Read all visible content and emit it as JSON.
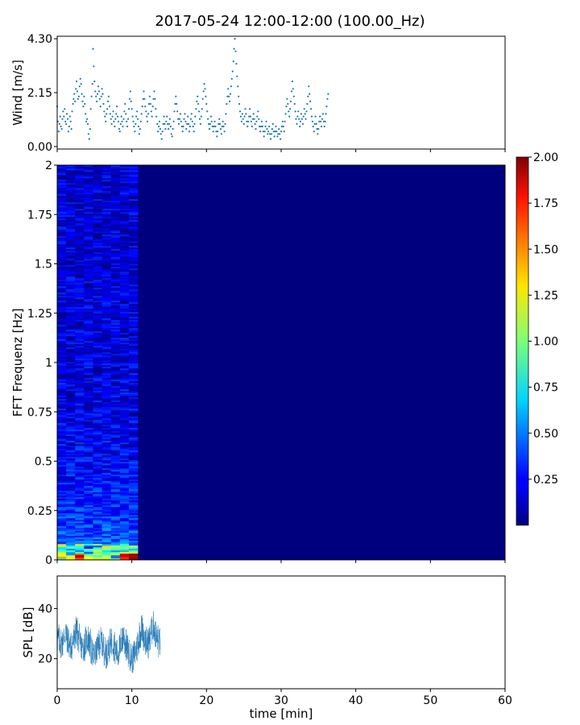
{
  "title": "2017-05-24 12:00-12:00 (100.00_Hz)",
  "chart_data": [
    {
      "id": "wind",
      "type": "scatter",
      "ylabel": "Wind [m/s]",
      "xlim": [
        0,
        60
      ],
      "ylim": [
        -0.1,
        4.4
      ],
      "yticks": [
        0.0,
        2.15,
        4.3
      ],
      "ytick_labels": [
        "0.00",
        "2.15",
        "4.30"
      ],
      "marker_color": "#1f77b4",
      "sample_step_min": 0.1,
      "x_start": 0.0,
      "values": [
        1.6,
        1.0,
        0.6,
        0.9,
        1.2,
        0.8,
        0.7,
        1.1,
        1.4,
        1.2,
        1.5,
        1.0,
        0.9,
        1.3,
        1.1,
        0.6,
        0.8,
        1.2,
        1.0,
        0.7,
        1.4,
        1.7,
        1.9,
        2.1,
        1.8,
        2.3,
        2.6,
        2.2,
        1.9,
        2.0,
        2.4,
        2.7,
        2.5,
        2.1,
        1.8,
        1.6,
        2.0,
        1.7,
        1.3,
        1.0,
        1.1,
        0.9,
        0.5,
        0.3,
        0.7,
        1.5,
        2.0,
        2.5,
        3.9,
        3.2,
        2.6,
        2.2,
        2.0,
        1.8,
        2.1,
        2.4,
        2.2,
        1.9,
        1.6,
        2.0,
        2.3,
        2.1,
        1.7,
        1.4,
        1.2,
        1.0,
        1.3,
        1.5,
        1.8,
        2.0,
        1.6,
        1.3,
        1.1,
        0.9,
        1.2,
        1.4,
        1.0,
        0.8,
        1.1,
        1.3,
        1.6,
        1.2,
        1.0,
        0.7,
        0.6,
        0.9,
        1.2,
        1.0,
        0.8,
        1.1,
        1.4,
        1.7,
        1.3,
        1.0,
        0.8,
        1.1,
        1.5,
        1.9,
        2.2,
        1.8,
        1.5,
        1.2,
        1.0,
        0.8,
        0.6,
        0.9,
        1.2,
        1.4,
        1.1,
        0.8,
        0.5,
        0.7,
        1.0,
        1.3,
        1.6,
        1.9,
        2.2,
        1.9,
        1.6,
        1.4,
        1.2,
        1.0,
        1.3,
        1.7,
        2.0,
        1.7,
        1.4,
        1.2,
        1.6,
        1.9,
        2.2,
        1.9,
        1.5,
        1.2,
        0.9,
        0.6,
        0.8,
        1.0,
        0.7,
        0.5,
        0.3,
        0.6,
        0.9,
        1.2,
        0.9,
        0.7,
        1.0,
        1.2,
        0.9,
        0.7,
        0.9,
        1.1,
        0.8,
        0.5,
        0.4,
        0.7,
        1.0,
        1.4,
        1.7,
        2.0,
        1.7,
        1.4,
        1.1,
        0.9,
        1.1,
        1.3,
        1.0,
        0.8,
        0.6,
        0.8,
        1.1,
        1.3,
        1.0,
        0.7,
        0.9,
        1.2,
        0.9,
        0.6,
        0.8,
        1.1,
        1.3,
        1.0,
        0.8,
        0.6,
        0.9,
        1.2,
        1.5,
        1.8,
        2.0,
        1.7,
        1.4,
        1.1,
        0.9,
        1.2,
        1.5,
        1.9,
        2.2,
        2.5,
        2.3,
        2.0,
        1.7,
        1.4,
        1.1,
        0.9,
        0.7,
        0.9,
        1.2,
        1.0,
        0.8,
        0.6,
        0.8,
        1.0,
        0.8,
        0.6,
        0.4,
        0.6,
        0.9,
        1.1,
        0.9,
        0.7,
        0.5,
        0.8,
        1.0,
        0.8,
        0.6,
        0.9,
        1.3,
        1.7,
        2.0,
        2.3,
        2.0,
        1.8,
        2.1,
        2.4,
        2.7,
        3.0,
        3.4,
        3.9,
        4.3,
        3.8,
        3.3,
        2.8,
        2.4,
        2.0,
        1.7,
        1.4,
        1.2,
        1.0,
        1.3,
        1.1,
        0.9,
        1.2,
        1.5,
        1.3,
        1.0,
        0.8,
        1.0,
        1.2,
        1.5,
        1.2,
        1.0,
        0.8,
        1.1,
        1.3,
        1.1,
        0.9,
        0.7,
        1.0,
        1.2,
        1.4,
        1.1,
        0.8,
        0.6,
        0.8,
        1.0,
        0.8,
        0.6,
        0.4,
        0.6,
        0.8,
        1.0,
        0.7,
        0.5,
        0.6,
        0.8,
        0.5,
        0.3,
        0.5,
        0.7,
        0.9,
        0.6,
        0.4,
        0.6,
        0.8,
        0.6,
        0.4,
        0.5,
        0.7,
        0.5,
        0.3,
        0.6,
        0.8,
        1.0,
        0.8,
        0.6,
        1.0,
        1.3,
        1.6,
        1.9,
        1.7,
        1.4,
        1.2,
        1.5,
        1.8,
        2.2,
        2.6,
        2.3,
        2.0,
        1.7,
        1.4,
        1.1,
        0.9,
        1.2,
        1.4,
        1.1,
        0.8,
        1.0,
        1.3,
        1.1,
        0.9,
        1.2,
        1.5,
        1.3,
        1.1,
        1.4,
        1.7,
        2.0,
        2.4,
        2.1,
        1.8,
        1.5,
        1.2,
        1.0,
        0.8,
        0.6,
        0.9,
        1.2,
        0.9,
        0.7,
        0.5,
        0.7,
        1.0,
        1.2,
        1.0,
        0.8,
        1.1,
        1.3,
        1.0,
        0.8,
        1.0,
        1.3,
        1.6,
        1.9,
        2.1
      ]
    },
    {
      "id": "spectrogram",
      "type": "heatmap",
      "ylabel": "FFT Frequenz [Hz]",
      "xlim": [
        0,
        60
      ],
      "ylim": [
        0,
        2
      ],
      "yticks": [
        0,
        0.25,
        0.5,
        0.75,
        1,
        1.25,
        1.5,
        1.75,
        2
      ],
      "ytick_labels": [
        "0",
        "0.25",
        "0.5",
        "0.75",
        "1",
        "1.25",
        "1.5",
        "1.75",
        "2"
      ],
      "data_extent_min": [
        0,
        10.8
      ],
      "colormap": "jet",
      "background_color": "#00007f",
      "colorbar": {
        "vmin": 0,
        "vmax": 2.0,
        "ticks": [
          0.25,
          0.5,
          0.75,
          1.0,
          1.25,
          1.5,
          1.75,
          2.0
        ],
        "tick_labels": [
          "0.25",
          "0.50",
          "0.75",
          "1.00",
          "1.25",
          "1.50",
          "1.75",
          "2.00"
        ]
      }
    },
    {
      "id": "spl",
      "type": "line",
      "ylabel": "SPL [dB]",
      "xlabel": "time [min]",
      "xlim": [
        0,
        60
      ],
      "ylim": [
        8,
        53
      ],
      "xticks": [
        0,
        10,
        20,
        30,
        40,
        50,
        60
      ],
      "xtick_labels": [
        "0",
        "10",
        "20",
        "30",
        "40",
        "50",
        "60"
      ],
      "yticks": [
        20,
        40
      ],
      "ytick_labels": [
        "20",
        "40"
      ],
      "line_color": "#1f77b4",
      "sample_step_min": 0.25,
      "x_start": 0.0,
      "mean": [
        28,
        27,
        26,
        29,
        30,
        28,
        26,
        25,
        27,
        29,
        31,
        28,
        26,
        24,
        25,
        27,
        28,
        26,
        23,
        21,
        22,
        24,
        26,
        27,
        25,
        23,
        22,
        24,
        26,
        27,
        25,
        23,
        22,
        24,
        27,
        29,
        26,
        24,
        22,
        21,
        20,
        22,
        24,
        27,
        30,
        32,
        29,
        27,
        26,
        28,
        31,
        33,
        30,
        28,
        26,
        27,
        29,
        28,
        26,
        25,
        27,
        29,
        28,
        26,
        26,
        27,
        28,
        27,
        26,
        26,
        27,
        28,
        27,
        26,
        25,
        27,
        28,
        27,
        26,
        25,
        27,
        28,
        27,
        26,
        26,
        27,
        28,
        27,
        26,
        25,
        27,
        28,
        27,
        26,
        25,
        27,
        28,
        27,
        26,
        25,
        27,
        28,
        27,
        26,
        25,
        27,
        28,
        27,
        26,
        25,
        27,
        28,
        27,
        26,
        25,
        27,
        28,
        27,
        26,
        25,
        27,
        28,
        27,
        26,
        25,
        27,
        28,
        27,
        26,
        25,
        27,
        28,
        27,
        26,
        25,
        27,
        28,
        27,
        26,
        25,
        27,
        28,
        27,
        26,
        25,
        27,
        28,
        27,
        26,
        25,
        27,
        28,
        27,
        26,
        25,
        27,
        28,
        27,
        26,
        25,
        27,
        28,
        27,
        26,
        25,
        27,
        28,
        27,
        26,
        25,
        27,
        28,
        27,
        26,
        25,
        27,
        28,
        27,
        26,
        25,
        27,
        28,
        27,
        26,
        25,
        27,
        28,
        27,
        26,
        25,
        27,
        28,
        27,
        26,
        25,
        27,
        28,
        27,
        26,
        25,
        27,
        28,
        27,
        26,
        25,
        27,
        28,
        27,
        26,
        25,
        27,
        28,
        27,
        26,
        25,
        27,
        28,
        27,
        26,
        25,
        27,
        28,
        27,
        26,
        25,
        27,
        28,
        27,
        26,
        25,
        27,
        28,
        27,
        26,
        25,
        27,
        28,
        27,
        26,
        25,
        27,
        28,
        27,
        26,
        25,
        27,
        28,
        27,
        26,
        25,
        27,
        28,
        27,
        26,
        25,
        27,
        28,
        27,
        26,
        25,
        27,
        28,
        27,
        26,
        25,
        27,
        28,
        27,
        26,
        25,
        27,
        28,
        27,
        26,
        25,
        27,
        28,
        27,
        26,
        25,
        27,
        28,
        27,
        26,
        25,
        27,
        28,
        27,
        26,
        25,
        27,
        28,
        27,
        26,
        25,
        27,
        28,
        27,
        26,
        25,
        27,
        28,
        27,
        26,
        25,
        27,
        28,
        27,
        26,
        25,
        27,
        28,
        27,
        26,
        25,
        27,
        28,
        27,
        26,
        25,
        27,
        28,
        27,
        26,
        25,
        27,
        28,
        27,
        26,
        25,
        27,
        28,
        27,
        26,
        25,
        27,
        28,
        27,
        26,
        25,
        27,
        28,
        27,
        26,
        25,
        27,
        28,
        27,
        26,
        25,
        27,
        28,
        27,
        26,
        25,
        27,
        28,
        27,
        26,
        25,
        27,
        28,
        27,
        26,
        25,
        27,
        28,
        27,
        26,
        25,
        27,
        28,
        27,
        26,
        25,
        27,
        28,
        27,
        26,
        25,
        27,
        28,
        27,
        26,
        25,
        27,
        28,
        27,
        26,
        25,
        27,
        28,
        27,
        26,
        25,
        27,
        28,
        27,
        26,
        25,
        27,
        28,
        27,
        26,
        25,
        27,
        28,
        27,
        26,
        25,
        27,
        28,
        27,
        26,
        25,
        27,
        28,
        27,
        26,
        25,
        27,
        28,
        27,
        26,
        25,
        27,
        28,
        27,
        26,
        25,
        27,
        28,
        27,
        26,
        25,
        27,
        28,
        27,
        26,
        25,
        27,
        28,
        27,
        26,
        25,
        27,
        28,
        27,
        26,
        25,
        27,
        28,
        27,
        26,
        25,
        27,
        28,
        27,
        26,
        25,
        27,
        28,
        27,
        26,
        25,
        27,
        28,
        27,
        26,
        25,
        27,
        28,
        27,
        26,
        25,
        27,
        28,
        27,
        26,
        25,
        27,
        28,
        27,
        26,
        25,
        27,
        28,
        27,
        26,
        25,
        27,
        28,
        27,
        26,
        25,
        27,
        28,
        27,
        26,
        25,
        27,
        28,
        27,
        26,
        25,
        27,
        28,
        27,
        26,
        25,
        27,
        28,
        27,
        26,
        25,
        27,
        28,
        27,
        26,
        25,
        27,
        28,
        27,
        26,
        25,
        27,
        28,
        27,
        26,
        25,
        27,
        28,
        27,
        26,
        25,
        27,
        28,
        27,
        26,
        25,
        27,
        28,
        27,
        26,
        25,
        27,
        28,
        27,
        26,
        25,
        27,
        28,
        27,
        26,
        25,
        27,
        28,
        27,
        26,
        25,
        27,
        28,
        27,
        26,
        25,
        27,
        28,
        27,
        26,
        25,
        27,
        28,
        27,
        26,
        25,
        27,
        28,
        27,
        26,
        25,
        27,
        28,
        27,
        26,
        25,
        27,
        28,
        27,
        26,
        25,
        27,
        28,
        27,
        26,
        25,
        27,
        28,
        27,
        26,
        25,
        27,
        28,
        27,
        26,
        25,
        27,
        28,
        27,
        26,
        25,
        27,
        28,
        27,
        26,
        25,
        27,
        28,
        27,
        26,
        25,
        27,
        28,
        27,
        26,
        25,
        27,
        28,
        27,
        26,
        25,
        27,
        28,
        27,
        26,
        25,
        27,
        28,
        27,
        26,
        25,
        27,
        28,
        27,
        26,
        25,
        27,
        28,
        27,
        26,
        25,
        27,
        28,
        27,
        26,
        25,
        27,
        28,
        27,
        26,
        25,
        27,
        28,
        27,
        26,
        25,
        27,
        28,
        27,
        26,
        25,
        27,
        28,
        27,
        26,
        25,
        27,
        28,
        27,
        26,
        25,
        27,
        28,
        27,
        26,
        25,
        27,
        28,
        27,
        26,
        25,
        27,
        28,
        27,
        26,
        25,
        27,
        28,
        27,
        26,
        25
      ],
      "data_end_min": 13.8
    }
  ]
}
